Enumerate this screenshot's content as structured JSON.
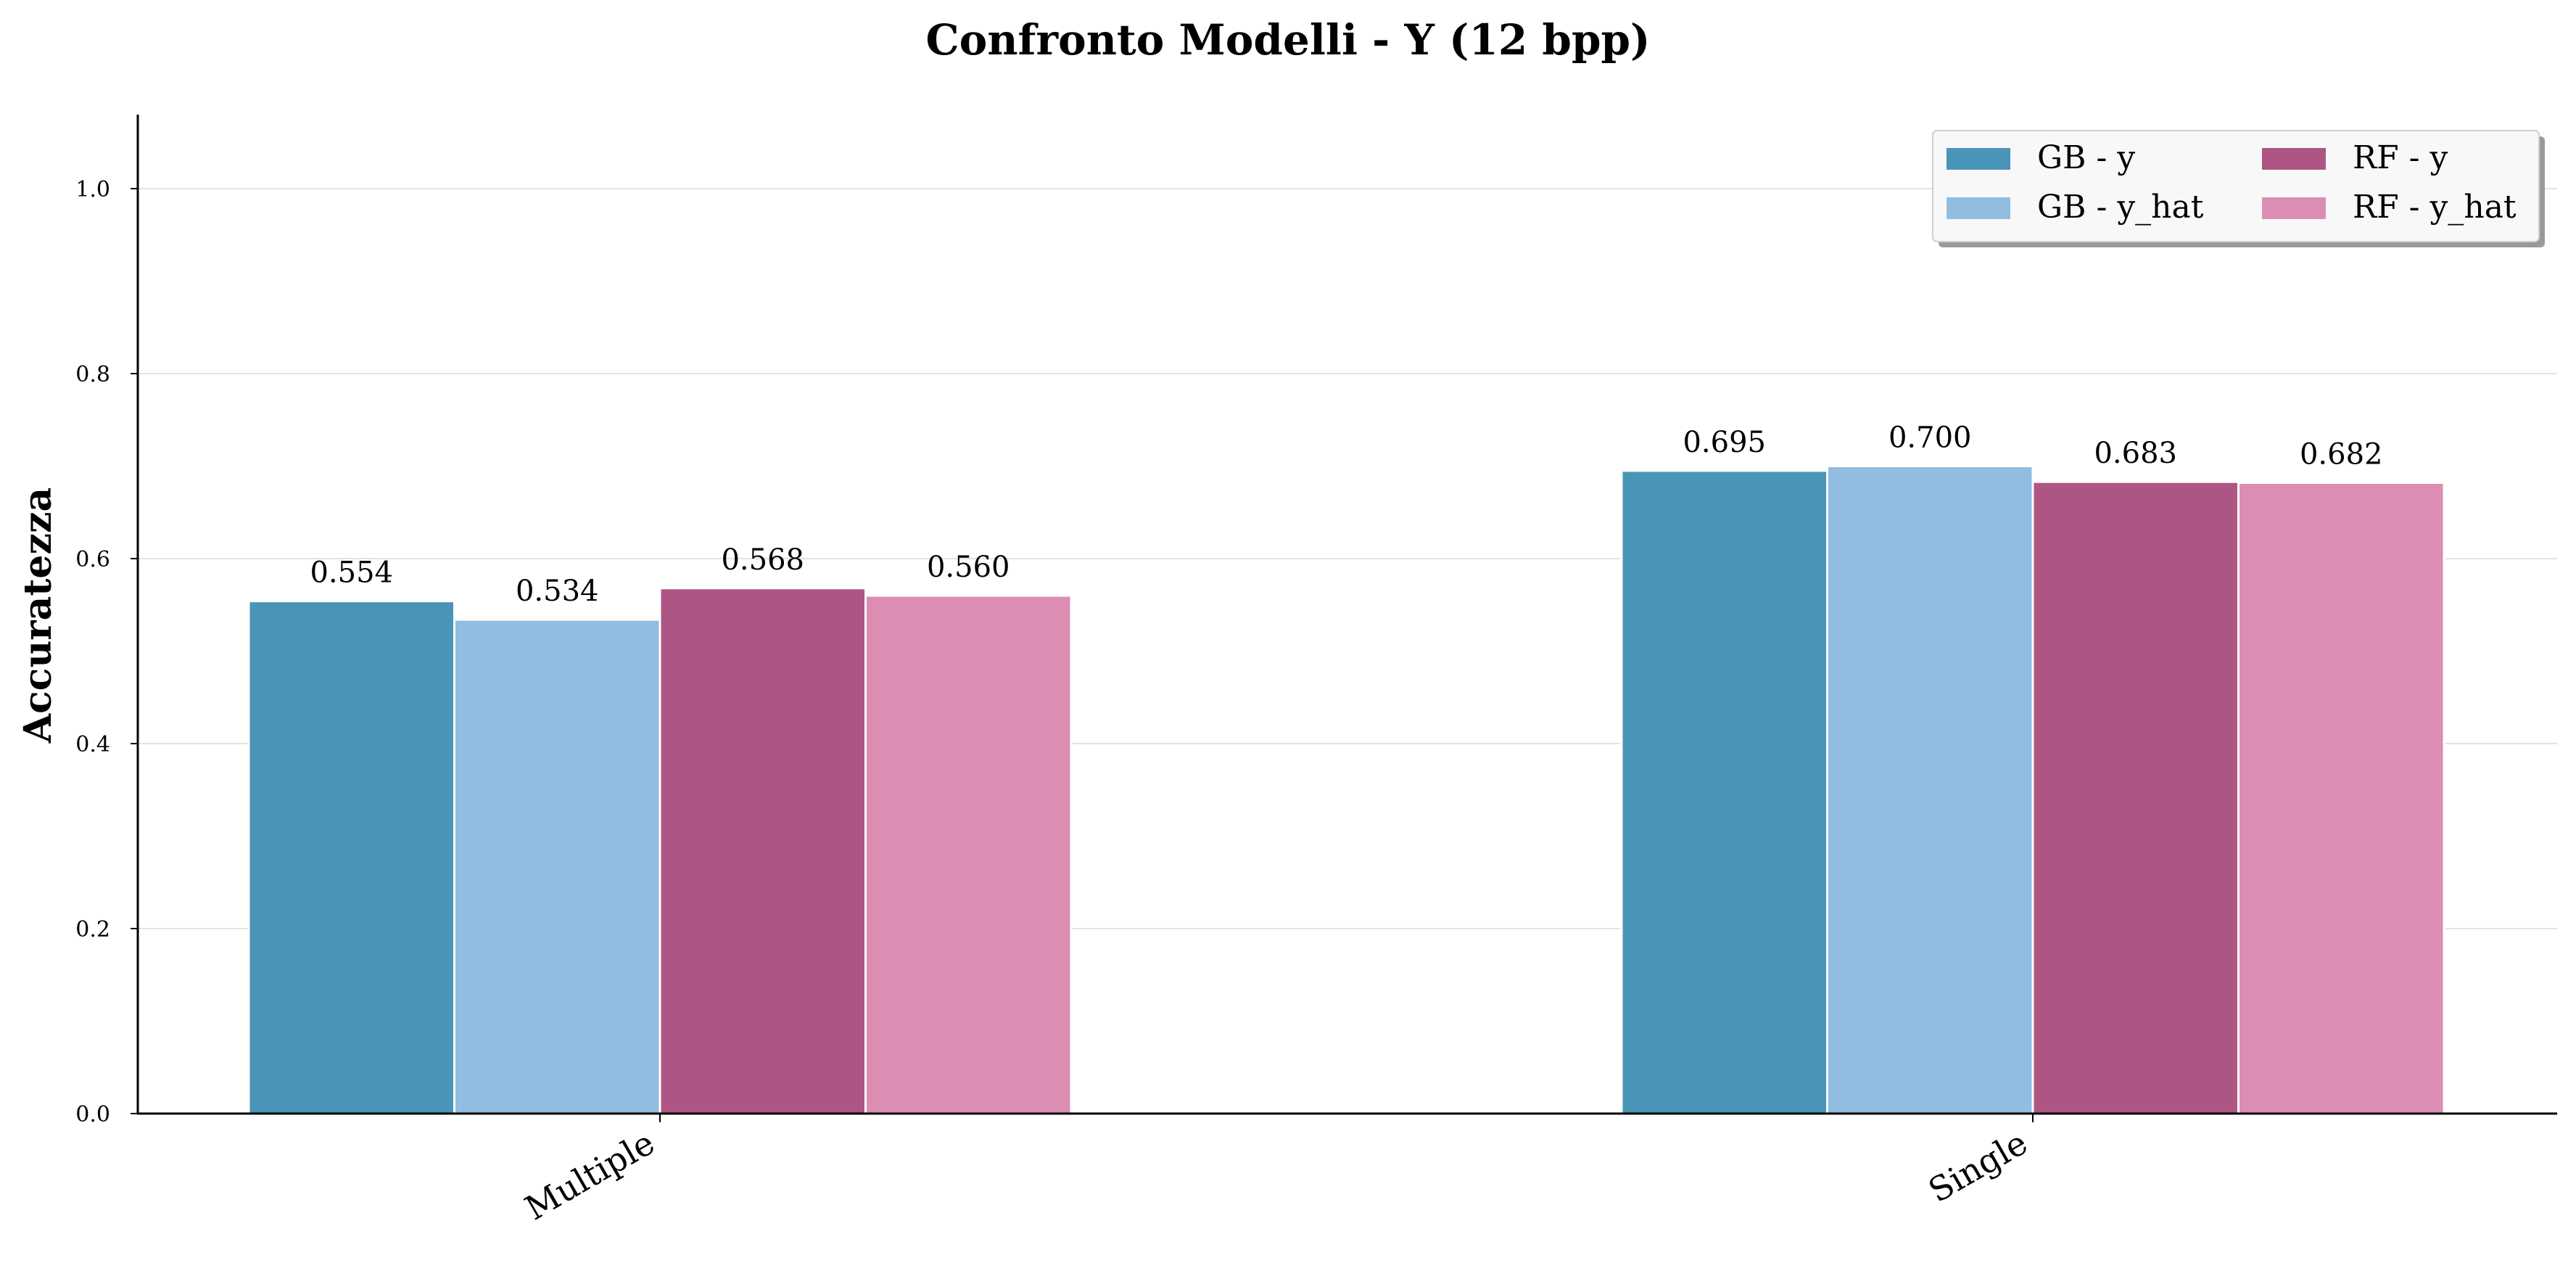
{
  "chart_data": {
    "type": "bar",
    "title": "Confronto Modelli - Y (12 bpp)",
    "ylabel": "Accuratezza",
    "xlabel": "",
    "categories": [
      "Multiple",
      "Single"
    ],
    "series": [
      {
        "name": "GB - y",
        "values": [
          0.554,
          0.695
        ],
        "labels": [
          "0.554",
          "0.695"
        ],
        "color": "#4a95b7"
      },
      {
        "name": "GB - y_hat",
        "values": [
          0.534,
          0.7
        ],
        "labels": [
          "0.534",
          "0.700"
        ],
        "color": "#90bde0"
      },
      {
        "name": "RF - y",
        "values": [
          0.568,
          0.683
        ],
        "labels": [
          "0.568",
          "0.683"
        ],
        "color": "#ad5683"
      },
      {
        "name": "RF - y_hat",
        "values": [
          0.56,
          0.682
        ],
        "labels": [
          "0.560",
          "0.682"
        ],
        "color": "#dc8db3"
      }
    ],
    "ylim": [
      0,
      1.08
    ],
    "yticks": [
      "0.0",
      "0.2",
      "0.4",
      "0.6",
      "0.8",
      "1.0"
    ],
    "grid": "horizontal",
    "legend": {
      "position": "top-right",
      "columns": 2
    }
  }
}
